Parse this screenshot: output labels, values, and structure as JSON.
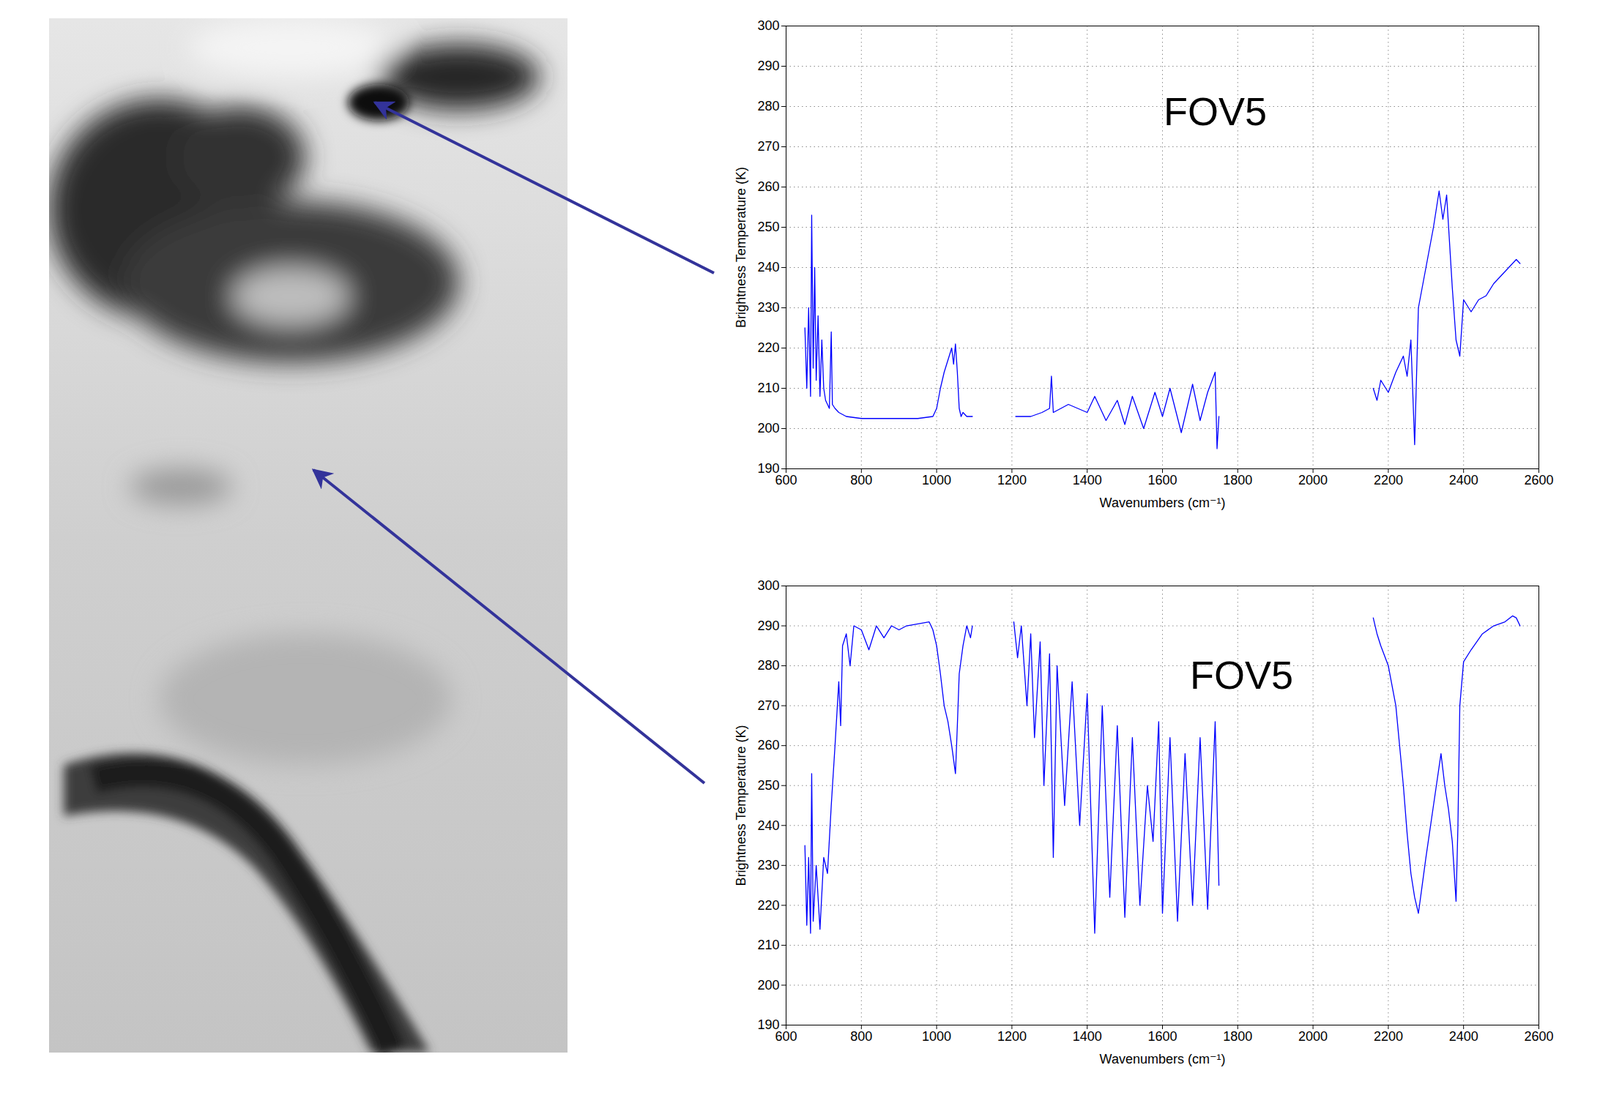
{
  "chart_data": [
    {
      "type": "line",
      "xlabel": "Wavenumbers (cm⁻¹)",
      "ylabel": "Brightness Temperature (K)",
      "annotation": "FOV5",
      "color": "#0000ff",
      "grid": true,
      "xlim": [
        600,
        2600
      ],
      "ylim": [
        190,
        300
      ],
      "xticks": [
        600,
        800,
        1000,
        1200,
        1400,
        1600,
        1800,
        2000,
        2200,
        2400,
        2600
      ],
      "yticks": [
        190,
        200,
        210,
        220,
        230,
        240,
        250,
        260,
        270,
        280,
        290,
        300
      ],
      "x": [
        650,
        655,
        660,
        665,
        668,
        672,
        676,
        680,
        685,
        690,
        695,
        700,
        705,
        710,
        715,
        720,
        723,
        730,
        740,
        760,
        800,
        850,
        900,
        950,
        990,
        1000,
        1010,
        1020,
        1030,
        1040,
        1045,
        1050,
        1055,
        1060,
        1065,
        1070,
        1080,
        1095,
        1150,
        1210,
        1250,
        1280,
        1300,
        1305,
        1310,
        1350,
        1400,
        1420,
        1450,
        1480,
        1500,
        1520,
        1550,
        1580,
        1600,
        1620,
        1650,
        1680,
        1700,
        1720,
        1740,
        1745,
        1750,
        1950,
        2160,
        2170,
        2180,
        2200,
        2220,
        2240,
        2250,
        2260,
        2270,
        2280,
        2300,
        2320,
        2335,
        2345,
        2355,
        2370,
        2380,
        2390,
        2400,
        2420,
        2440,
        2460,
        2480,
        2500,
        2520,
        2540,
        2550
      ],
      "values": [
        225,
        210,
        230,
        208,
        253,
        215,
        240,
        212,
        228,
        208,
        222,
        210,
        207,
        206,
        205,
        224,
        206,
        205,
        204,
        203,
        202.5,
        202.5,
        202.5,
        202.5,
        203,
        205,
        210,
        214,
        217,
        220,
        216,
        221,
        214,
        205,
        203,
        204,
        203,
        203,
        null,
        203,
        203,
        204,
        205,
        213,
        204,
        206,
        204,
        208,
        202,
        207,
        201,
        208,
        200,
        209,
        203,
        210,
        199,
        211,
        202,
        209,
        214,
        195,
        203,
        null,
        210,
        207,
        212,
        209,
        214,
        218,
        213,
        222,
        196,
        230,
        240,
        250,
        259,
        252,
        258,
        235,
        222,
        218,
        232,
        229,
        232,
        233,
        236,
        238,
        240,
        242,
        241
      ]
    },
    {
      "type": "line",
      "xlabel": "Wavenumbers (cm⁻¹)",
      "ylabel": "Brightness Temperature (K)",
      "annotation": "FOV5",
      "color": "#0000ff",
      "grid": true,
      "xlim": [
        600,
        2600
      ],
      "ylim": [
        190,
        300
      ],
      "xticks": [
        600,
        800,
        1000,
        1200,
        1400,
        1600,
        1800,
        2000,
        2200,
        2400,
        2600
      ],
      "yticks": [
        190,
        200,
        210,
        220,
        230,
        240,
        250,
        260,
        270,
        280,
        290,
        300
      ],
      "x": [
        650,
        655,
        660,
        665,
        668,
        672,
        680,
        690,
        700,
        710,
        720,
        730,
        740,
        745,
        750,
        760,
        770,
        780,
        800,
        820,
        840,
        860,
        880,
        900,
        920,
        950,
        980,
        990,
        1000,
        1010,
        1020,
        1030,
        1040,
        1050,
        1055,
        1060,
        1070,
        1080,
        1090,
        1095,
        1150,
        1205,
        1215,
        1225,
        1240,
        1250,
        1260,
        1275,
        1285,
        1300,
        1310,
        1320,
        1340,
        1360,
        1380,
        1400,
        1420,
        1440,
        1460,
        1480,
        1500,
        1520,
        1540,
        1560,
        1575,
        1590,
        1600,
        1620,
        1640,
        1660,
        1680,
        1700,
        1720,
        1740,
        1750,
        1950,
        2160,
        2170,
        2180,
        2200,
        2220,
        2240,
        2250,
        2260,
        2270,
        2280,
        2290,
        2300,
        2320,
        2340,
        2350,
        2360,
        2370,
        2380,
        2385,
        2390,
        2400,
        2420,
        2450,
        2480,
        2510,
        2530,
        2540,
        2550
      ],
      "values": [
        235,
        215,
        232,
        213,
        253,
        216,
        230,
        214,
        232,
        228,
        245,
        260,
        276,
        265,
        285,
        288,
        280,
        290,
        289,
        284,
        290,
        287,
        290,
        289,
        290,
        290.5,
        291,
        289,
        285,
        278,
        270,
        266,
        260,
        253,
        265,
        278,
        285,
        290,
        287,
        290,
        null,
        291,
        282,
        290,
        270,
        288,
        262,
        286,
        250,
        283,
        232,
        280,
        245,
        276,
        240,
        273,
        213,
        270,
        222,
        265,
        217,
        262,
        220,
        250,
        236,
        266,
        218,
        262,
        216,
        258,
        220,
        262,
        219,
        266,
        225,
        null,
        292,
        288,
        285,
        280,
        270,
        250,
        238,
        228,
        222,
        218,
        225,
        232,
        245,
        258,
        250,
        244,
        236,
        221,
        240,
        270,
        281,
        284,
        288,
        290,
        291,
        292.5,
        292,
        290
      ]
    }
  ]
}
